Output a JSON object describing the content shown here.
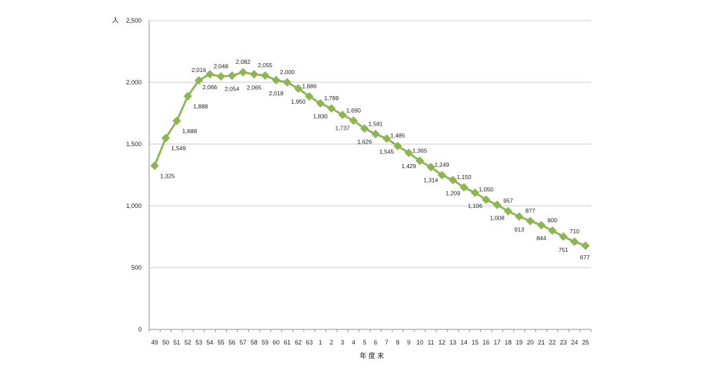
{
  "chart_data": {
    "type": "line",
    "ylabel": "人",
    "xlabel": "年 度 末",
    "ylim": [
      0,
      2500
    ],
    "yticks": [
      0,
      500,
      1000,
      1500,
      2000,
      2500
    ],
    "ytick_labels": [
      "0",
      "500",
      "1,000",
      "1,500",
      "2,000",
      "2,500"
    ],
    "grid": true,
    "legend": "none",
    "line_color": "#8db552",
    "marker": "diamond",
    "categories": [
      "49",
      "50",
      "51",
      "52",
      "53",
      "54",
      "55",
      "56",
      "57",
      "58",
      "59",
      "60",
      "61",
      "62",
      "63",
      "1",
      "2",
      "3",
      "4",
      "5",
      "6",
      "7",
      "8",
      "9",
      "10",
      "11",
      "12",
      "13",
      "14",
      "15",
      "16",
      "17",
      "18",
      "19",
      "20",
      "21",
      "22",
      "23",
      "24",
      "25"
    ],
    "values": [
      1325,
      1549,
      1688,
      1888,
      2016,
      2066,
      2048,
      2054,
      2082,
      2065,
      2055,
      2018,
      2000,
      1950,
      1886,
      1830,
      1789,
      1737,
      1690,
      1626,
      1581,
      1545,
      1485,
      1429,
      1365,
      1314,
      1249,
      1209,
      1150,
      1106,
      1050,
      1008,
      957,
      913,
      877,
      844,
      800,
      751,
      710,
      677
    ],
    "value_labels": [
      "1,325",
      "1,549",
      "1,688",
      "1,888",
      "2,016",
      "2,066",
      "2,048",
      "2,054",
      "2,082",
      "2,065",
      "2,055",
      "2,018",
      "2,000",
      "1,950",
      "1,886",
      "1,830",
      "1,789",
      "1,737",
      "1,690",
      "1,626",
      "1,581",
      "1,545",
      "1,485",
      "1,429",
      "1,365",
      "1,314",
      "1,249",
      "1,209",
      "1,150",
      "1,106",
      "1,050",
      "1,008",
      "957",
      "913",
      "877",
      "844",
      "800",
      "751",
      "710",
      "677"
    ]
  }
}
